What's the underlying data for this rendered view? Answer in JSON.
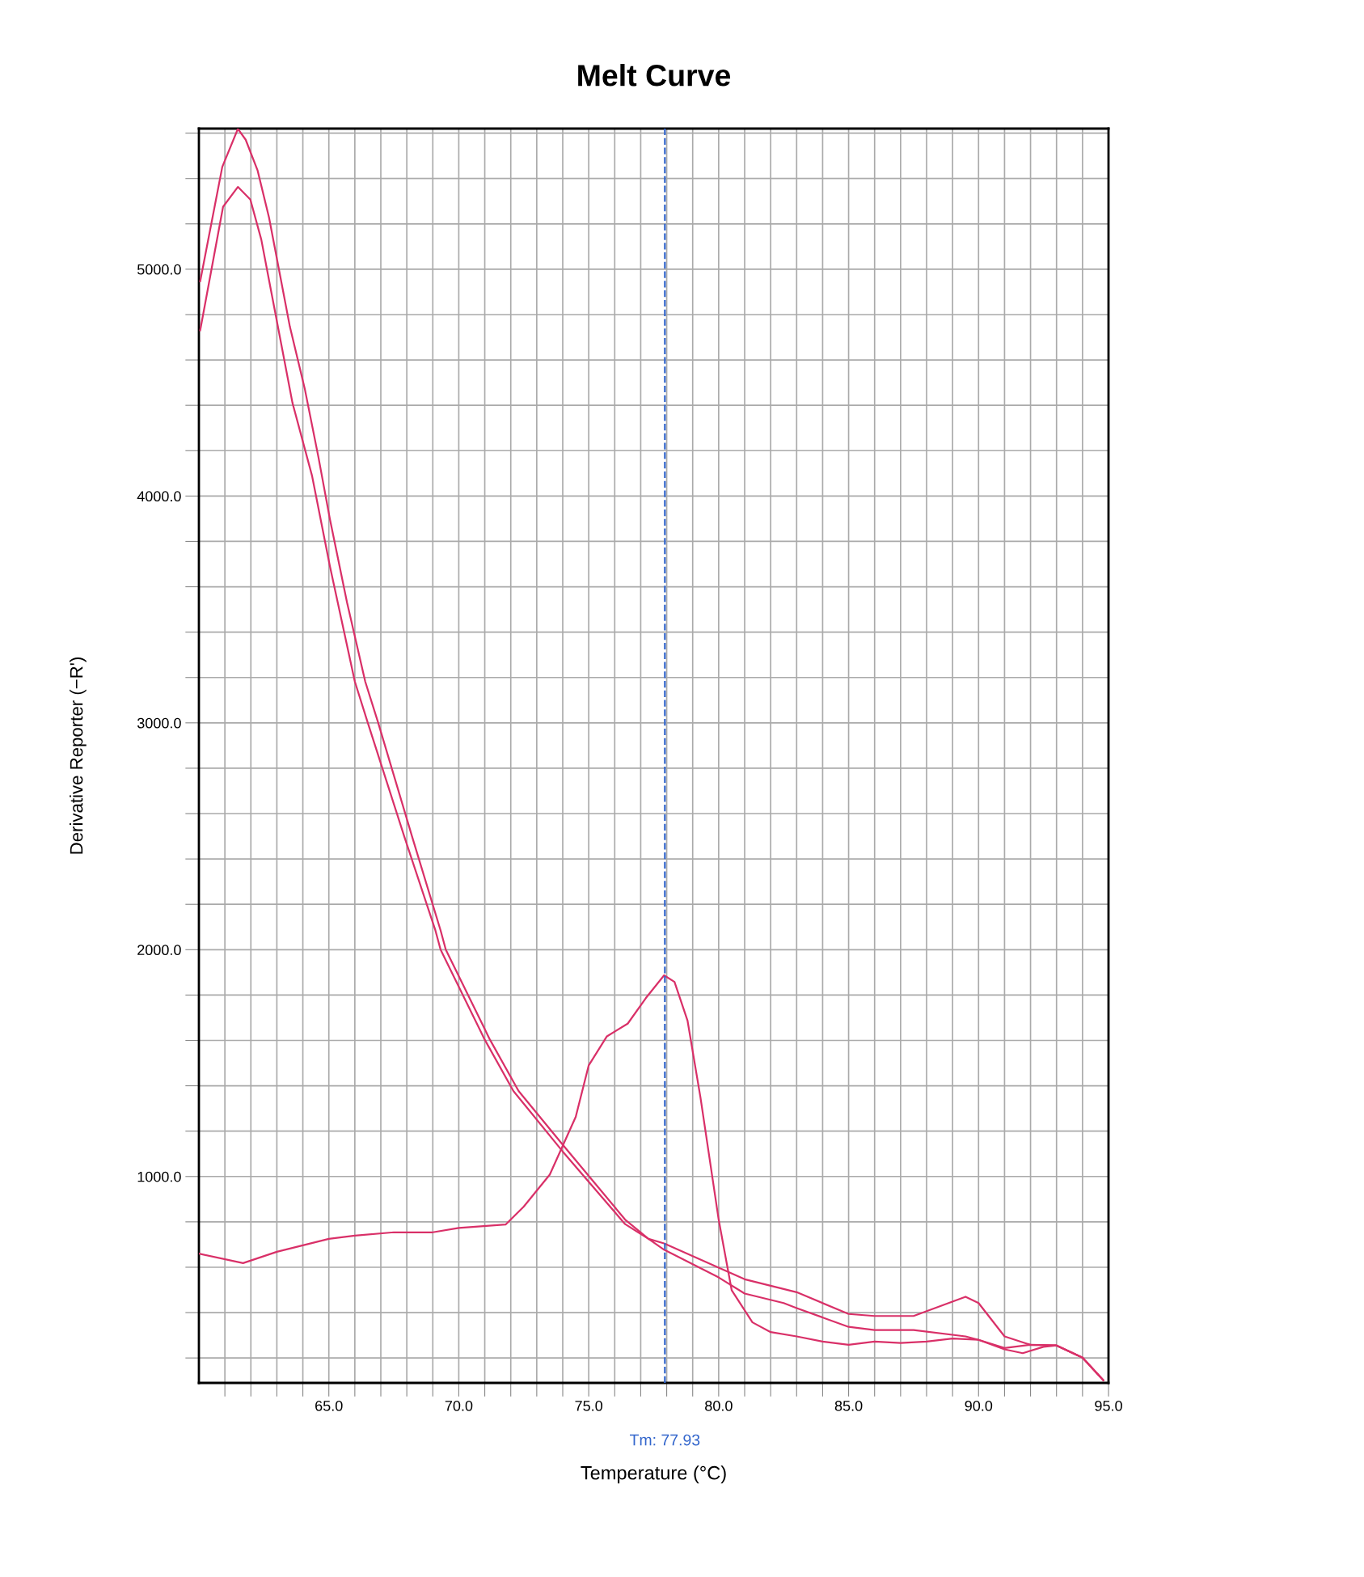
{
  "chart_data": {
    "type": "line",
    "title": "Melt Curve",
    "xlabel": "Temperature (°C)",
    "ylabel": "Derivative Reporter (−R')",
    "xlim": [
      60,
      95
    ],
    "ylim": [
      90,
      5620
    ],
    "xticks": [
      {
        "value": 61,
        "label": null
      },
      {
        "value": 62,
        "label": null
      },
      {
        "value": 63,
        "label": null
      },
      {
        "value": 64,
        "label": null
      },
      {
        "value": 65,
        "label": "65.0"
      },
      {
        "value": 66,
        "label": null
      },
      {
        "value": 67,
        "label": null
      },
      {
        "value": 68,
        "label": null
      },
      {
        "value": 69,
        "label": null
      },
      {
        "value": 70,
        "label": "70.0"
      },
      {
        "value": 71,
        "label": null
      },
      {
        "value": 72,
        "label": null
      },
      {
        "value": 73,
        "label": null
      },
      {
        "value": 74,
        "label": null
      },
      {
        "value": 75,
        "label": "75.0"
      },
      {
        "value": 76,
        "label": null
      },
      {
        "value": 77,
        "label": null
      },
      {
        "value": 78,
        "label": null
      },
      {
        "value": 79,
        "label": null
      },
      {
        "value": 80,
        "label": "80.0"
      },
      {
        "value": 81,
        "label": null
      },
      {
        "value": 82,
        "label": null
      },
      {
        "value": 83,
        "label": null
      },
      {
        "value": 84,
        "label": null
      },
      {
        "value": 85,
        "label": "85.0"
      },
      {
        "value": 86,
        "label": null
      },
      {
        "value": 87,
        "label": null
      },
      {
        "value": 88,
        "label": null
      },
      {
        "value": 89,
        "label": null
      },
      {
        "value": 90,
        "label": "90.0"
      },
      {
        "value": 91,
        "label": null
      },
      {
        "value": 92,
        "label": null
      },
      {
        "value": 93,
        "label": null
      },
      {
        "value": 94,
        "label": null
      },
      {
        "value": 95,
        "label": "95.0"
      }
    ],
    "yticks": [
      {
        "value": 200,
        "label": null
      },
      {
        "value": 400,
        "label": null
      },
      {
        "value": 600,
        "label": null
      },
      {
        "value": 800,
        "label": null
      },
      {
        "value": 1000,
        "label": "1000.0"
      },
      {
        "value": 1200,
        "label": null
      },
      {
        "value": 1400,
        "label": null
      },
      {
        "value": 1600,
        "label": null
      },
      {
        "value": 1800,
        "label": null
      },
      {
        "value": 2000,
        "label": "2000.0"
      },
      {
        "value": 2200,
        "label": null
      },
      {
        "value": 2400,
        "label": null
      },
      {
        "value": 2600,
        "label": null
      },
      {
        "value": 2800,
        "label": null
      },
      {
        "value": 3000,
        "label": "3000.0"
      },
      {
        "value": 3200,
        "label": null
      },
      {
        "value": 3400,
        "label": null
      },
      {
        "value": 3600,
        "label": null
      },
      {
        "value": 3800,
        "label": null
      },
      {
        "value": 4000,
        "label": "4000.0"
      },
      {
        "value": 4200,
        "label": null
      },
      {
        "value": 4400,
        "label": null
      },
      {
        "value": 4600,
        "label": null
      },
      {
        "value": 4800,
        "label": null
      },
      {
        "value": 5000,
        "label": "5000.0"
      },
      {
        "value": 5200,
        "label": null
      },
      {
        "value": 5400,
        "label": null
      },
      {
        "value": 5600,
        "label": null
      }
    ],
    "grid": true,
    "line_style": "solid",
    "marker": "none",
    "ref_lines": [
      {
        "axis": "x",
        "value": 77.93,
        "label": "Tm: 77.93",
        "color": "#3366cc",
        "line_style": "dashed"
      }
    ],
    "series": [
      {
        "color": "#d93068",
        "x": [
          60.05,
          60.9,
          61.5,
          61.8,
          62.26,
          62.7,
          63.1,
          63.5,
          64.07,
          64.6,
          65.04,
          65.7,
          66.4,
          66.9,
          68.2,
          69.3,
          69.5,
          71.2,
          72.3,
          74,
          76.4,
          77.3,
          77.9,
          80,
          81,
          82.5,
          83,
          85,
          86,
          87.5,
          89.5,
          90,
          91,
          92,
          93,
          94,
          94.8
        ],
        "values": [
          4947,
          5451,
          5619,
          5571,
          5435,
          5227,
          4987,
          4747,
          4475,
          4171,
          3899,
          3531,
          3182,
          3000,
          2500,
          2085,
          2000,
          1603,
          1377,
          1140,
          810,
          725,
          705,
          598,
          547,
          504,
          490,
          394,
          385,
          385,
          470,
          442,
          295,
          258,
          255,
          201,
          102
        ]
      },
      {
        "color": "#d93068",
        "x": [
          60.05,
          60.93,
          61.5,
          61.98,
          62.4,
          62.8,
          63.2,
          63.6,
          64.35,
          65.04,
          66.0,
          66.5,
          67.9,
          69.1,
          69.3,
          71.0,
          72.1,
          74,
          76.4,
          77.3,
          77.9,
          80,
          81,
          82.5,
          83,
          85,
          86,
          87.5,
          89.5,
          90,
          91,
          92,
          93,
          94,
          94.8
        ],
        "values": [
          4731,
          5275,
          5363,
          5307,
          5131,
          4891,
          4651,
          4411,
          4091,
          3691,
          3182,
          3000,
          2500,
          2085,
          2000,
          1603,
          1377,
          1110,
          790,
          725,
          677,
          555,
          484,
          442,
          420,
          337,
          323,
          323,
          295,
          280,
          244,
          258,
          255,
          201,
          102
        ]
      },
      {
        "color": "#d93068",
        "x": [
          60,
          61.7,
          63,
          65,
          66,
          67.5,
          69,
          70,
          71.8,
          72.5,
          73.5,
          74.5,
          75,
          75.7,
          76.5,
          77.2,
          77.9,
          78.3,
          78.8,
          79.3,
          80,
          80.5,
          81.3,
          82,
          83,
          84,
          85,
          86,
          87,
          88,
          89,
          90,
          91,
          91.7,
          92.5,
          93,
          94,
          94.8
        ],
        "values": [
          660,
          618,
          668,
          725,
          739,
          754,
          754,
          773,
          788,
          867,
          1008,
          1263,
          1490,
          1618,
          1674,
          1787,
          1887,
          1858,
          1688,
          1348,
          810,
          499,
          357,
          314,
          295,
          272,
          258,
          272,
          266,
          272,
          286,
          280,
          238,
          221,
          249,
          255,
          201,
          102
        ]
      }
    ]
  }
}
